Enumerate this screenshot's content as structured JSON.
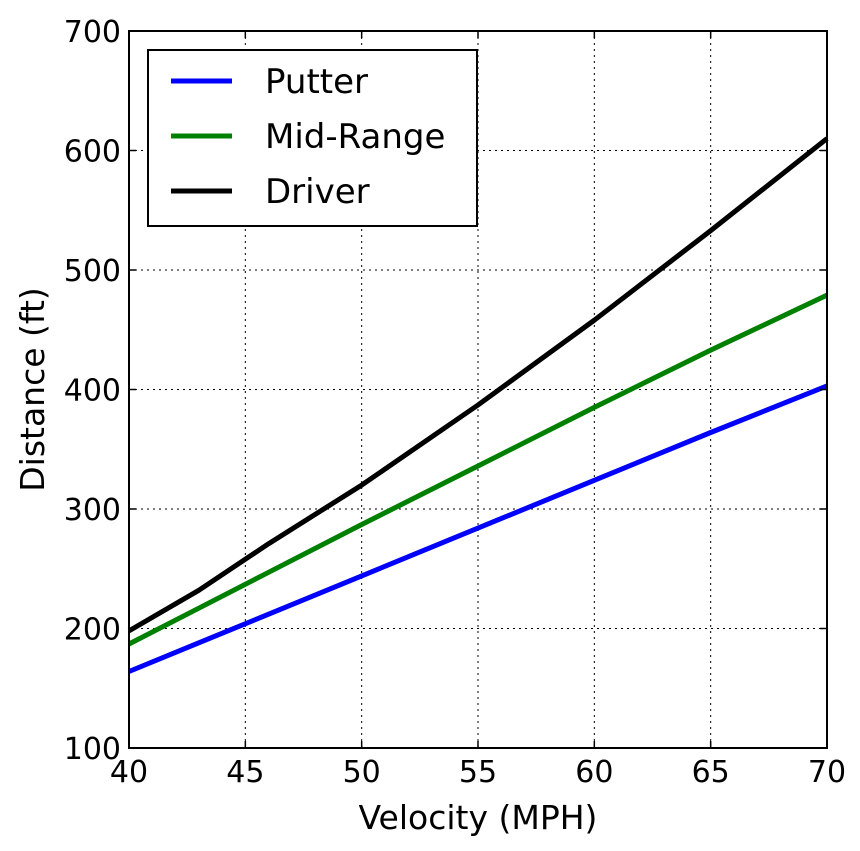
{
  "chart_data": {
    "type": "line",
    "title": "",
    "xlabel": "Velocity (MPH)",
    "ylabel": "Distance (ft)",
    "xlim": [
      40,
      70
    ],
    "ylim": [
      100,
      700
    ],
    "xticks": [
      40,
      45,
      50,
      55,
      60,
      65,
      70
    ],
    "yticks": [
      100,
      200,
      300,
      400,
      500,
      600,
      700
    ],
    "grid": true,
    "legend_position": "top-left",
    "x": [
      40,
      43,
      46,
      50,
      55,
      60,
      65,
      70
    ],
    "series": [
      {
        "name": "Putter",
        "color": "#0000ff",
        "values": [
          164,
          188,
          212,
          244,
          284,
          324,
          364,
          403
        ]
      },
      {
        "name": "Mid-Range",
        "color": "#008000",
        "values": [
          187,
          217,
          247,
          287,
          336,
          385,
          433,
          479
        ]
      },
      {
        "name": "Driver",
        "color": "#000000",
        "values": [
          198,
          232,
          271,
          320,
          387,
          458,
          533,
          610
        ]
      }
    ]
  }
}
